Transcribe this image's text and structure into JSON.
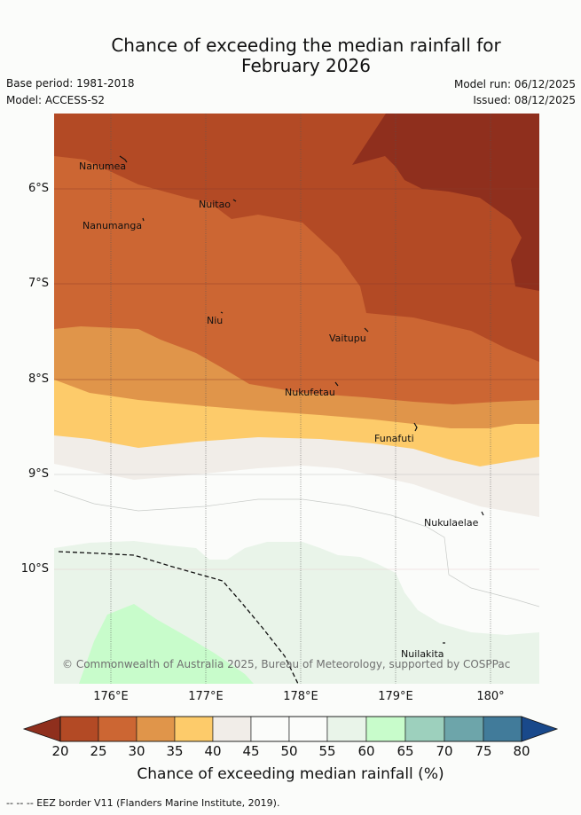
{
  "title": {
    "line1": "Chance of exceeding the median rainfall for",
    "line2": "February 2026"
  },
  "meta": {
    "base_period": "Base period: 1981-2018",
    "model": "Model: ACCESS-S2",
    "model_run": "Model run: 06/12/2025",
    "issued": "Issued: 08/12/2025"
  },
  "axes": {
    "y_labels": [
      "6°S",
      "7°S",
      "8°S",
      "9°S",
      "10°S"
    ],
    "x_labels": [
      "176°E",
      "177°E",
      "178°E",
      "179°E",
      "180°"
    ]
  },
  "places": [
    {
      "name": "Nanumea"
    },
    {
      "name": "Nuitao"
    },
    {
      "name": "Nanumanga"
    },
    {
      "name": "Niu"
    },
    {
      "name": "Vaitupu"
    },
    {
      "name": "Nukufetau"
    },
    {
      "name": "Funafuti"
    },
    {
      "name": "Nukulaelae"
    },
    {
      "name": "Nuilakita"
    }
  ],
  "copyright": "© Commonwealth of Australia 2025, Bureau of Meteorology, supported by COSPPac",
  "colorbar": {
    "ticks": [
      "20",
      "25",
      "30",
      "35",
      "40",
      "45",
      "50",
      "55",
      "60",
      "65",
      "70",
      "75",
      "80"
    ],
    "colors": [
      "#8f2f1d",
      "#b34a25",
      "#cc6633",
      "#e0954a",
      "#fdcb6a",
      "#f1ede8",
      "#fbfcfa",
      "#fbfcfa",
      "#e9f4e9",
      "#c8fccb",
      "#9dd0bd",
      "#6da5aa",
      "#417b9a",
      "#19498b"
    ],
    "title": "Chance of exceeding median rainfall (%)"
  },
  "footnote": "--  --  -- EEZ border V11 (Flanders Marine Institute, 2019)."
}
